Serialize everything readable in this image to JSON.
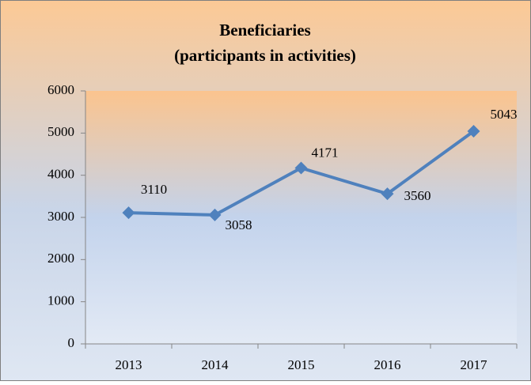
{
  "chart_data": {
    "type": "line",
    "title": "Beneficiaries",
    "subtitle": "(participants in activities)",
    "categories": [
      "2013",
      "2014",
      "2015",
      "2016",
      "2017"
    ],
    "series": [
      {
        "name": "Beneficiaries",
        "color": "#4f81bd",
        "values": [
          3110,
          3058,
          4171,
          3560,
          5043
        ]
      }
    ],
    "ylim": [
      0,
      6000
    ],
    "yticks": [
      0,
      1000,
      2000,
      3000,
      4000,
      5000,
      6000
    ],
    "grid": false,
    "legend": false
  }
}
